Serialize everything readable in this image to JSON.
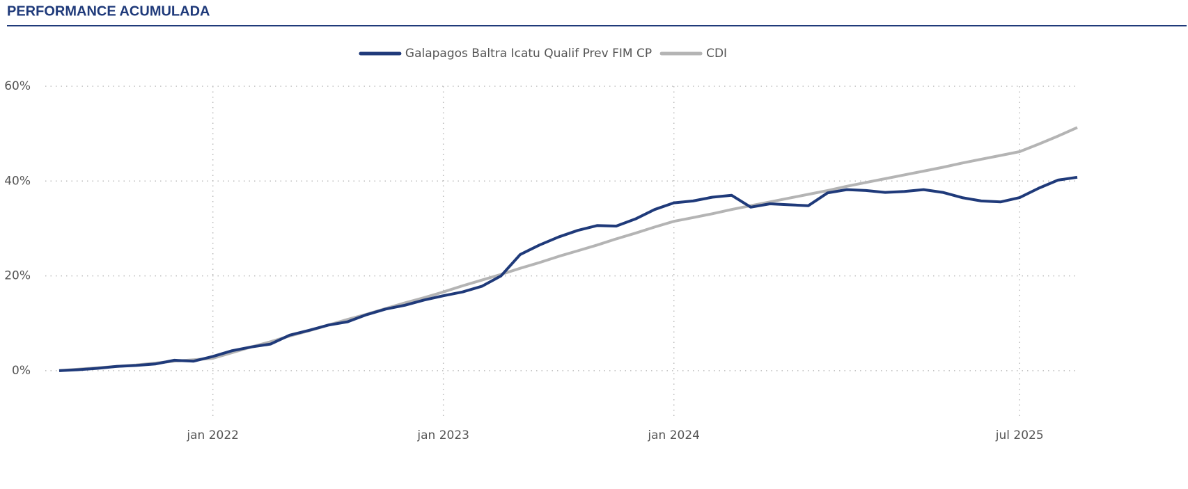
{
  "chart_data": {
    "type": "line",
    "title": "PERFORMANCE ACUMULADA",
    "x": [
      "2021-05",
      "2021-06",
      "2021-07",
      "2021-08",
      "2021-09",
      "2021-10",
      "2021-11",
      "2021-12",
      "2022-01",
      "2022-02",
      "2022-03",
      "2022-04",
      "2022-05",
      "2022-06",
      "2022-07",
      "2022-08",
      "2022-09",
      "2022-10",
      "2022-11",
      "2022-12",
      "2023-01",
      "2023-02",
      "2023-03",
      "2023-04",
      "2023-05",
      "2023-06",
      "2023-07",
      "2023-08",
      "2023-09",
      "2023-10",
      "2023-11",
      "2023-12",
      "2024-01",
      "2024-02",
      "2024-03",
      "2024-04",
      "2024-05",
      "2024-06",
      "2024-07",
      "2024-08",
      "2024-09",
      "2024-10",
      "2024-11",
      "2024-12",
      "2025-01",
      "2025-02",
      "2025-03",
      "2025-04",
      "2025-05",
      "2025-06",
      "2025-07",
      "2025-08",
      "2025-09",
      "2025-10"
    ],
    "series": [
      {
        "name": "Galapagos Baltra Icatu Qualif Prev FIM CP",
        "color": "#1f3a7a",
        "values": [
          0,
          0.2,
          0.5,
          0.9,
          1.1,
          1.4,
          2.2,
          2.0,
          3.0,
          4.2,
          5.0,
          5.6,
          7.5,
          8.5,
          9.6,
          10.3,
          11.8,
          13.0,
          13.8,
          14.9,
          15.8,
          16.6,
          17.8,
          20.0,
          24.5,
          26.5,
          28.2,
          29.6,
          30.6,
          30.5,
          32.0,
          34.0,
          35.4,
          35.8,
          36.6,
          37.0,
          34.5,
          35.2,
          35.0,
          34.8,
          37.5,
          38.2,
          38.0,
          37.6,
          37.8,
          38.2,
          37.6,
          36.5,
          35.8,
          35.6,
          36.5,
          38.5,
          40.2,
          40.8
        ]
      },
      {
        "name": "CDI",
        "color": "#b4b4b4",
        "values": [
          0,
          0.3,
          0.6,
          0.9,
          1.2,
          1.6,
          2.0,
          2.3,
          2.6,
          3.8,
          5.0,
          6.1,
          7.3,
          8.4,
          9.6,
          10.8,
          11.9,
          13.1,
          14.3,
          15.4,
          16.6,
          17.9,
          19.1,
          20.3,
          21.6,
          22.8,
          24.1,
          25.3,
          26.5,
          27.8,
          29.0,
          30.3,
          31.5,
          32.3,
          33.1,
          34.0,
          34.8,
          35.6,
          36.4,
          37.2,
          38.0,
          38.9,
          39.7,
          40.5,
          41.3,
          42.1,
          42.9,
          43.8,
          44.6,
          45.4,
          46.2,
          47.8,
          49.5,
          51.3
        ]
      }
    ],
    "xlim": [
      "2021-05",
      "2025-10"
    ],
    "xticks": [
      {
        "value": "2022-01",
        "label": "jan 2022"
      },
      {
        "value": "2023-01",
        "label": "jan 2023"
      },
      {
        "value": "2024-01",
        "label": "jan 2024"
      },
      {
        "value": "2025-07",
        "label": "jul 2025"
      }
    ],
    "ylim": [
      -10,
      60
    ],
    "yticks": [
      {
        "value": 0,
        "label": "0%"
      },
      {
        "value": 20,
        "label": "20%"
      },
      {
        "value": 40,
        "label": "40%"
      },
      {
        "value": 60,
        "label": "60%"
      }
    ],
    "grid": true,
    "legend": "top"
  }
}
